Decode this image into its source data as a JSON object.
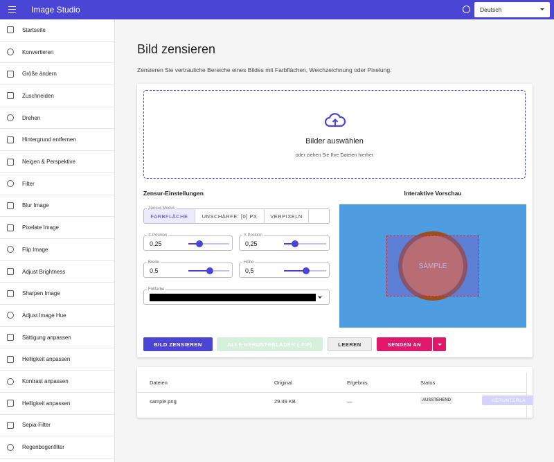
{
  "topbar": {
    "title": "Image Studio",
    "language": "Deutsch"
  },
  "sidebar": {
    "items": [
      "Startseite",
      "Konvertieren",
      "Größe ändern",
      "Zuschneiden",
      "Drehen",
      "Hintergrund entfernen",
      "Neigen & Perspektive",
      "Filter",
      "Blur Image",
      "Pixelate Image",
      "Flip Image",
      "Adjust Brightness",
      "Sharpen Image",
      "Adjust Image Hue",
      "Sättigung anpassen",
      "Helligkeit anpassen",
      "Kontrast anpassen",
      "Helligkeit anpassen",
      "Sepia-Filter",
      "Regenbogenfilter"
    ]
  },
  "page": {
    "title": "Bild zensieren",
    "description": "Zensieren Sie vertrauliche Bereiche eines Bildes mit Farbflächen, Weichzeichnung oder Pixelung."
  },
  "dropzone": {
    "title": "Bilder auswählen",
    "hint": "oder ziehen Sie Ihre Dateien hierher"
  },
  "settings": {
    "title": "Zensur-Einstellungen",
    "mode_label": "Zensur-Modus",
    "modes": [
      "FARBFLÄCHE",
      "UNSCHÄRFE: [0] PX",
      "VERPIXELN"
    ],
    "fields": [
      {
        "label": "X-Position",
        "value": "0,25"
      },
      {
        "label": "Y-Position",
        "value": "0,25"
      },
      {
        "label": "Breite",
        "value": "0,5"
      },
      {
        "label": "Höhe",
        "value": "0,5"
      }
    ],
    "fill_label": "Füllfarbe"
  },
  "preview": {
    "title": "Interaktive Vorschau",
    "sample": "SAMPLE"
  },
  "actions": {
    "censor": "BILD ZENSIEREN",
    "download_all": "ALLE HERUNTERLADEN (.ZIP)",
    "clear": "LEEREN",
    "send": "SENDEN AN"
  },
  "table": {
    "headers": [
      "Dateien",
      "Original",
      "Ergebnis",
      "Status"
    ],
    "rows": [
      [
        "sample.png",
        "29.49 KB",
        "—",
        "AUSSTEHEND",
        "HERUNTERLA"
      ]
    ]
  }
}
